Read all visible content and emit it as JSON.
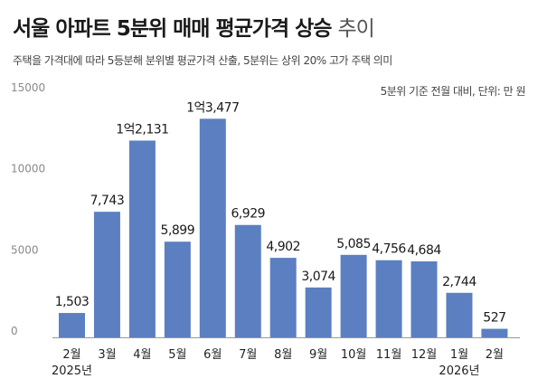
{
  "title_main": "서울 아파트 5분위 매매 평균가격 상승",
  "title_light": "추이",
  "subtitle": "주택을 가격대에 따라 5등분해 분위별 평균가격 산출, 5분위는 상위 20% 고가 주택 의미",
  "unit_note": "5분위 기준 전월 대비, 단위: 만 원",
  "colors": {
    "bar": "#5b7fc1",
    "axis": "#999999"
  },
  "chart_data": {
    "type": "bar",
    "title": "서울 아파트 5분위 매매 평균가격 상승 추이",
    "ylabel": "",
    "xlabel": "",
    "categories": [
      "2월",
      "3월",
      "4월",
      "5월",
      "6월",
      "7월",
      "8월",
      "9월",
      "10월",
      "11월",
      "12월",
      "1월",
      "2월"
    ],
    "year_labels": [
      "2025년",
      "2026년"
    ],
    "values": [
      1503,
      7743,
      12131,
      5899,
      13477,
      6929,
      4902,
      3074,
      5085,
      4756,
      4684,
      2744,
      527
    ],
    "data_labels": [
      "1,503",
      "7,743",
      "1억2,131",
      "5,899",
      "1억3,477",
      "6,929",
      "4,902",
      "3,074",
      "5,085",
      "4,756",
      "4,684",
      "2,744",
      "527"
    ],
    "yticks": [
      0,
      5000,
      10000,
      15000
    ],
    "ytick_labels": [
      "0",
      "5000",
      "10000",
      "15000"
    ],
    "ylim": [
      0,
      15000
    ],
    "grid": false
  }
}
